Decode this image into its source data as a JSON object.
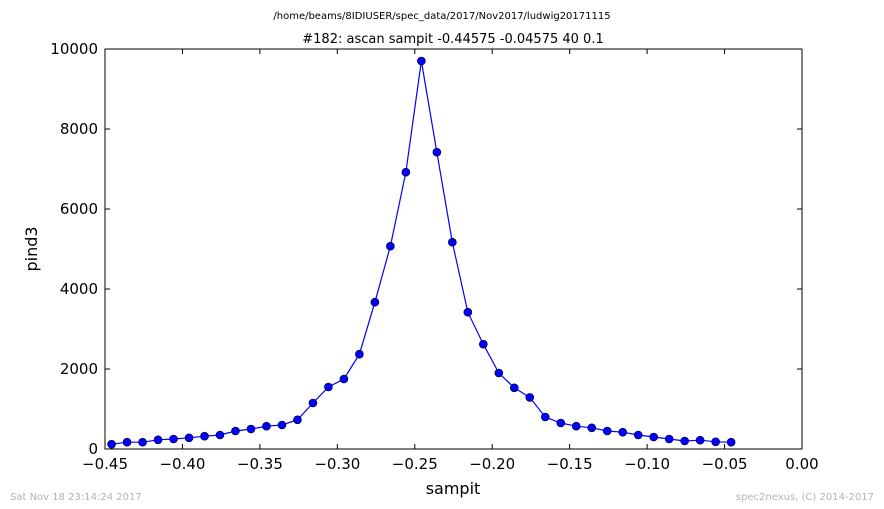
{
  "page": {
    "footer_left": "Sat Nov 18 23:14:24 2017",
    "footer_right": "spec2nexus, (C) 2014-2017"
  },
  "chart_data": {
    "type": "line",
    "suptitle": "/home/beams/8IDIUSER/spec_data/2017/Nov2017/ludwig20171115",
    "title": "#182: ascan  sampit -0.44575 -0.04575  40 0.1",
    "xlabel": "sampit",
    "ylabel": "pind3",
    "xlim": [
      -0.45,
      0.0
    ],
    "ylim": [
      0,
      10000
    ],
    "xticks": [
      -0.45,
      -0.4,
      -0.35,
      -0.3,
      -0.25,
      -0.2,
      -0.15,
      -0.1,
      -0.05,
      0.0
    ],
    "xtick_labels": [
      "−0.45",
      "−0.40",
      "−0.35",
      "−0.30",
      "−0.25",
      "−0.20",
      "−0.15",
      "−0.10",
      "−0.05",
      "0.00"
    ],
    "yticks": [
      0,
      2000,
      4000,
      6000,
      8000,
      10000
    ],
    "ytick_labels": [
      "0",
      "2000",
      "4000",
      "6000",
      "8000",
      "10000"
    ],
    "grid": false,
    "line_color": "#0000ff",
    "marker": "circle",
    "series": [
      {
        "x": [
          -0.44575,
          -0.43575,
          -0.42575,
          -0.41575,
          -0.40575,
          -0.39575,
          -0.38575,
          -0.37575,
          -0.36575,
          -0.35575,
          -0.34575,
          -0.33575,
          -0.32575,
          -0.31575,
          -0.30575,
          -0.29575,
          -0.28575,
          -0.27575,
          -0.26575,
          -0.25575,
          -0.24575,
          -0.23575,
          -0.22575,
          -0.21575,
          -0.20575,
          -0.19575,
          -0.18575,
          -0.17575,
          -0.16575,
          -0.15575,
          -0.14575,
          -0.13575,
          -0.12575,
          -0.11575,
          -0.10575,
          -0.09575,
          -0.08575,
          -0.07575,
          -0.06575,
          -0.05575,
          -0.04575
        ],
        "y": [
          120,
          170,
          170,
          230,
          250,
          280,
          320,
          350,
          450,
          500,
          570,
          600,
          730,
          1150,
          1550,
          1750,
          2370,
          3670,
          5070,
          6920,
          9700,
          7420,
          5170,
          3420,
          2620,
          1900,
          1530,
          1290,
          800,
          650,
          570,
          530,
          450,
          420,
          350,
          300,
          250,
          200,
          220,
          180,
          170
        ]
      }
    ]
  }
}
